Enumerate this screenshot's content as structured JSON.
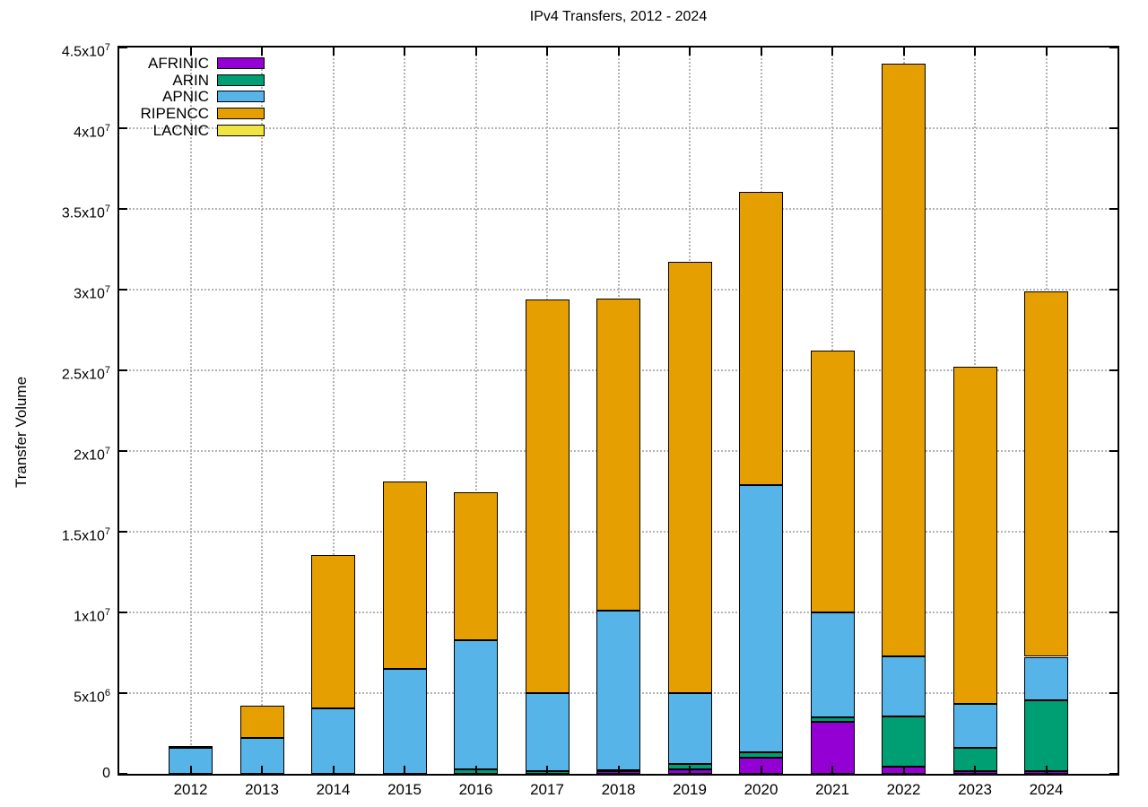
{
  "chart_data": {
    "type": "bar",
    "stacked": true,
    "title": "IPv4 Transfers, 2012 - 2024",
    "xlabel": "",
    "ylabel": "Transfer Volume",
    "categories": [
      "2012",
      "2013",
      "2014",
      "2015",
      "2016",
      "2017",
      "2018",
      "2019",
      "2020",
      "2021",
      "2022",
      "2023",
      "2024"
    ],
    "series": [
      {
        "name": "AFRINIC",
        "color": "#9400d3",
        "values": [
          0,
          0,
          0,
          0,
          0,
          0,
          150000,
          300000,
          1000000,
          3250000,
          450000,
          150000,
          150000
        ]
      },
      {
        "name": "ARIN",
        "color": "#009e73",
        "values": [
          0,
          0,
          0,
          0,
          300000,
          150000,
          50000,
          300000,
          350000,
          250000,
          3100000,
          1450000,
          4400000
        ]
      },
      {
        "name": "APNIC",
        "color": "#56b4e9",
        "values": [
          1600000,
          2200000,
          4050000,
          6500000,
          8000000,
          4850000,
          9900000,
          4400000,
          16550000,
          6500000,
          3750000,
          2750000,
          2700000
        ]
      },
      {
        "name": "RIPENCC",
        "color": "#e69f00",
        "values": [
          50000,
          2000000,
          9500000,
          11600000,
          9150000,
          24400000,
          19350000,
          26700000,
          18150000,
          16200000,
          36700000,
          20850000,
          22650000
        ]
      },
      {
        "name": "LACNIC",
        "color": "#f0e442",
        "values": [
          0,
          0,
          0,
          0,
          0,
          0,
          0,
          0,
          0,
          0,
          0,
          0,
          0
        ]
      }
    ],
    "totals": [
      1650000,
      4200000,
      13550000,
      18100000,
      17450000,
      29400000,
      29450000,
      31700000,
      36050000,
      26200000,
      44000000,
      25200000,
      29900000
    ],
    "ylim": [
      0,
      45000000
    ],
    "ytick_values": [
      0,
      5000000,
      10000000,
      15000000,
      20000000,
      25000000,
      30000000,
      35000000,
      40000000,
      45000000
    ],
    "ytick_labels": [
      "0",
      "5x10^6",
      "1x10^7",
      "1.5x10^7",
      "2x10^7",
      "2.5x10^7",
      "3x10^7",
      "3.5x10^7",
      "4x10^7",
      "4.5x10^7"
    ],
    "grid": true,
    "legend_position": "top-left",
    "axis_color": "#000000",
    "grid_color": "#b4b4b4",
    "background_color": "#ffffff"
  }
}
